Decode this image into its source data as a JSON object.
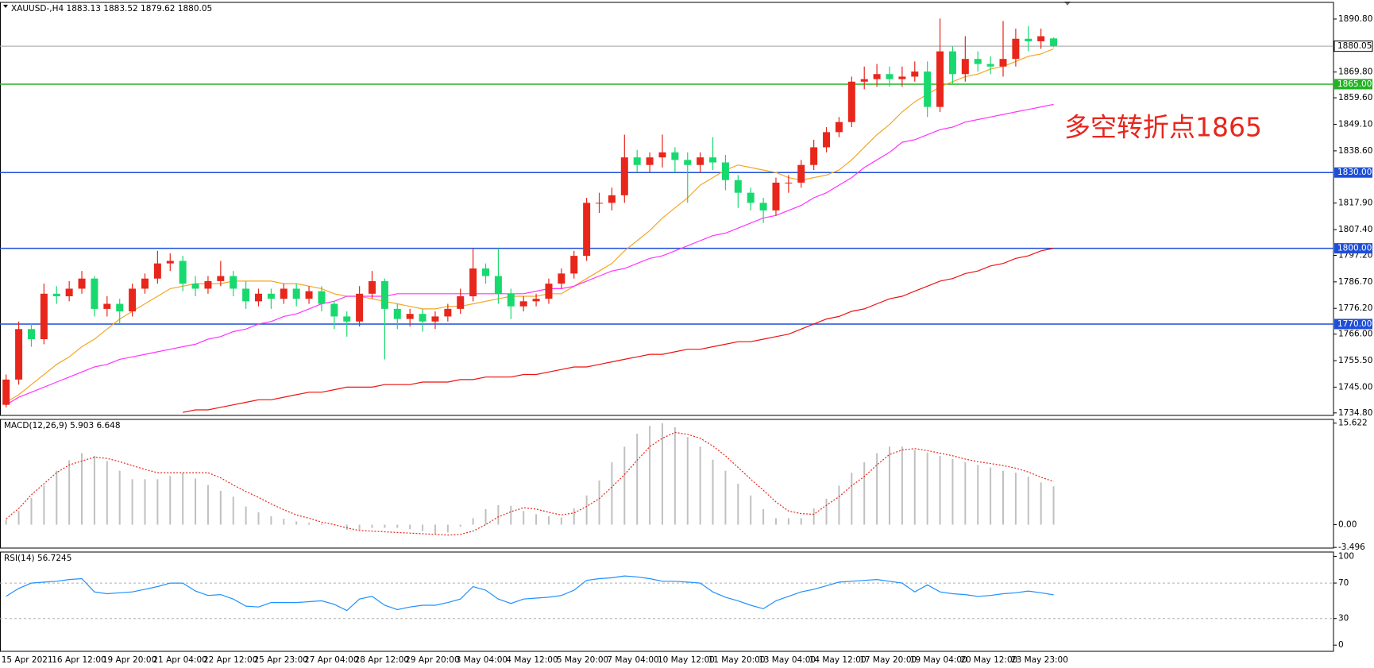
{
  "chart_data": [
    {
      "type": "candlestick",
      "title": "XAUUSD-,H4  1883.13 1883.52 1879.62 1880.05",
      "categories": [
        "15 Apr 2021",
        null,
        null,
        null,
        "16 Apr 12:00",
        null,
        null,
        null,
        "19 Apr 20:00",
        null,
        null,
        null,
        "21 Apr 04:00",
        null,
        null,
        null,
        "22 Apr 12:00",
        null,
        null,
        null,
        "25 Apr 23:00",
        null,
        null,
        null,
        "27 Apr 04:00",
        null,
        null,
        null,
        "28 Apr 12:00",
        null,
        null,
        null,
        "29 Apr 20:00",
        null,
        null,
        null,
        "3 May 04:00",
        null,
        null,
        null,
        "4 May 12:00",
        null,
        null,
        null,
        "5 May 20:00",
        null,
        null,
        null,
        "7 May 04:00",
        null,
        null,
        null,
        "10 May 12:00",
        null,
        null,
        null,
        "11 May 20:00",
        null,
        null,
        null,
        "13 May 04:00",
        null,
        null,
        null,
        "14 May 12:00",
        null,
        null,
        null,
        "17 May 20:00",
        null,
        null,
        null,
        "19 May 04:00",
        null,
        null,
        null,
        "20 May 12:00",
        null,
        null,
        null,
        "23 May 23:00",
        null,
        null,
        null
      ],
      "open": [
        1738,
        1748,
        1768,
        1764,
        1782,
        1781,
        1784,
        1788,
        1776,
        1778,
        1775,
        1784,
        1788,
        1794,
        1795,
        1786,
        1784,
        1787,
        1789,
        1784,
        1779,
        1782,
        1780,
        1784,
        1780,
        1783,
        1778,
        1773,
        1771,
        1782,
        1787,
        1776,
        1772,
        1774,
        1771,
        1773,
        1776,
        1781,
        1792,
        1789,
        1782,
        1777,
        1779,
        1780,
        1786,
        1790,
        1797,
        1818,
        1818,
        1821,
        1836,
        1833,
        1836,
        1838,
        1835,
        1833,
        1836,
        1834,
        1827,
        1822,
        1818,
        1815,
        1826,
        1826,
        1833,
        1840,
        1846,
        1850,
        1866,
        1867,
        1869,
        1867,
        1868,
        1870,
        1856,
        1878,
        1869,
        1875,
        1873,
        1872,
        1875,
        1883,
        1882,
        1883.13
      ],
      "high": [
        1750,
        1771,
        1770,
        1786,
        1785,
        1787,
        1791,
        1789,
        1781,
        1780,
        1786,
        1790,
        1799,
        1798,
        1797,
        1789,
        1789,
        1795,
        1791,
        1787,
        1784,
        1784,
        1786,
        1786,
        1785,
        1785,
        1779,
        1775,
        1785,
        1791,
        1788,
        1778,
        1776,
        1776,
        1775,
        1778,
        1784,
        1800,
        1794,
        1800,
        1784,
        1781,
        1782,
        1788,
        1792,
        1799,
        1820,
        1822,
        1824,
        1845,
        1839,
        1838,
        1845,
        1840,
        1838,
        1838,
        1844,
        1837,
        1829,
        1824,
        1820,
        1828,
        1829,
        1835,
        1843,
        1848,
        1852,
        1868,
        1872,
        1873,
        1872,
        1872,
        1874,
        1874,
        1891,
        1880,
        1884,
        1878,
        1876,
        1890,
        1887,
        1888,
        1887,
        1883.52
      ],
      "low": [
        1737,
        1746,
        1761,
        1762,
        1778,
        1779,
        1782,
        1773,
        1773,
        1770,
        1773,
        1782,
        1786,
        1791,
        1783,
        1781,
        1782,
        1785,
        1781,
        1776,
        1777,
        1776,
        1778,
        1777,
        1778,
        1775,
        1768,
        1765,
        1769,
        1780,
        1756,
        1768,
        1769,
        1767,
        1768,
        1771,
        1774,
        1779,
        1786,
        1778,
        1772,
        1775,
        1777,
        1778,
        1784,
        1788,
        1795,
        1814,
        1815,
        1818,
        1830,
        1830,
        1832,
        1830,
        1818,
        1830,
        1831,
        1823,
        1816,
        1815,
        1810,
        1813,
        1822,
        1824,
        1831,
        1838,
        1844,
        1848,
        1863,
        1864,
        1864,
        1864,
        1866,
        1852,
        1854,
        1865,
        1866,
        1870,
        1869,
        1868,
        1872,
        1878,
        1879,
        1879.62
      ],
      "close": [
        1748,
        1768,
        1764,
        1782,
        1781,
        1784,
        1788,
        1776,
        1778,
        1775,
        1784,
        1788,
        1794,
        1795,
        1786,
        1784,
        1787,
        1789,
        1784,
        1779,
        1782,
        1780,
        1784,
        1780,
        1783,
        1778,
        1773,
        1771,
        1782,
        1787,
        1776,
        1772,
        1774,
        1771,
        1773,
        1776,
        1781,
        1792,
        1789,
        1782,
        1777,
        1779,
        1780,
        1786,
        1790,
        1797,
        1818,
        1818,
        1821,
        1836,
        1833,
        1836,
        1838,
        1835,
        1833,
        1836,
        1834,
        1827,
        1822,
        1818,
        1815,
        1826,
        1826,
        1833,
        1840,
        1846,
        1850,
        1866,
        1867,
        1869,
        1867,
        1868,
        1870,
        1856,
        1878,
        1869,
        1875,
        1873,
        1872,
        1875,
        1883,
        1882,
        1884,
        1880.05
      ],
      "up_color": "#e8261b",
      "down_color": "#18d96e",
      "series": [
        {
          "color": "#f5a623",
          "values": [
            1739,
            1742,
            1746,
            1750,
            1754,
            1757,
            1761,
            1764,
            1768,
            1772,
            1775,
            1778,
            1781,
            1784,
            1785,
            1786,
            1786,
            1786,
            1787,
            1787,
            1787,
            1787,
            1786,
            1786,
            1785,
            1784,
            1782,
            1781,
            1781,
            1780,
            1779,
            1778,
            1777,
            1776,
            1776,
            1777,
            1777,
            1778,
            1779,
            1780,
            1781,
            1781,
            1781,
            1782,
            1782,
            1785,
            1788,
            1791,
            1794,
            1799,
            1803,
            1807,
            1812,
            1816,
            1820,
            1825,
            1828,
            1831,
            1833,
            1832,
            1831,
            1830,
            1828,
            1827,
            1828,
            1829,
            1831,
            1835,
            1840,
            1845,
            1849,
            1854,
            1858,
            1861,
            1864,
            1866,
            1868,
            1869,
            1871,
            1872,
            1874,
            1876,
            1877,
            1879
          ]
        },
        {
          "color": "#ff33ff",
          "values": [
            1738,
            1741,
            1743,
            1745,
            1747,
            1749,
            1751,
            1753,
            1754,
            1756,
            1757,
            1758,
            1759,
            1760,
            1761,
            1762,
            1764,
            1765,
            1767,
            1768,
            1770,
            1771,
            1773,
            1774,
            1776,
            1778,
            1779,
            1781,
            1781,
            1781,
            1781,
            1782,
            1782,
            1782,
            1782,
            1782,
            1782,
            1782,
            1782,
            1782,
            1782,
            1782,
            1783,
            1784,
            1784,
            1785,
            1787,
            1789,
            1791,
            1792,
            1794,
            1796,
            1797,
            1799,
            1801,
            1803,
            1805,
            1806,
            1808,
            1810,
            1812,
            1813,
            1815,
            1817,
            1820,
            1822,
            1825,
            1828,
            1832,
            1835,
            1838,
            1842,
            1843,
            1845,
            1847,
            1848,
            1850,
            1851,
            1852,
            1853,
            1854,
            1855,
            1856,
            1857
          ]
        },
        {
          "color": "#ee1111",
          "values": [
            null,
            null,
            null,
            null,
            null,
            null,
            null,
            null,
            null,
            null,
            null,
            null,
            null,
            null,
            1735,
            1736,
            1736,
            1737,
            1738,
            1739,
            1740,
            1740,
            1741,
            1742,
            1743,
            1743,
            1744,
            1745,
            1745,
            1745,
            1746,
            1746,
            1746,
            1747,
            1747,
            1747,
            1748,
            1748,
            1749,
            1749,
            1749,
            1750,
            1750,
            1751,
            1752,
            1753,
            1753,
            1754,
            1755,
            1756,
            1757,
            1758,
            1758,
            1759,
            1760,
            1760,
            1761,
            1762,
            1763,
            1763,
            1764,
            1765,
            1766,
            1768,
            1770,
            1772,
            1773,
            1775,
            1776,
            1778,
            1780,
            1781,
            1783,
            1785,
            1787,
            1788,
            1790,
            1791,
            1793,
            1794,
            1796,
            1797,
            1799,
            1800
          ]
        }
      ],
      "ylim": [
        1733.8,
        1897.4
      ],
      "yticks": [
        {
          "value": 1890.8,
          "label": "1890.80"
        },
        {
          "value": 1869.8,
          "label": "1869.80"
        },
        {
          "value": 1859.6,
          "label": "1859.60"
        },
        {
          "value": 1849.1,
          "label": "1849.10"
        },
        {
          "value": 1838.6,
          "label": "1838.60"
        },
        {
          "value": 1817.9,
          "label": "1817.90"
        },
        {
          "value": 1807.4,
          "label": "1807.40"
        },
        {
          "value": 1797.2,
          "label": "1797.20"
        },
        {
          "value": 1786.7,
          "label": "1786.70"
        },
        {
          "value": 1776.2,
          "label": "1776.20"
        },
        {
          "value": 1766,
          "label": "1766.00"
        },
        {
          "value": 1755.5,
          "label": "1755.50"
        },
        {
          "value": 1745,
          "label": "1745.00"
        },
        {
          "value": 1734.8,
          "label": "1734.80"
        }
      ],
      "levels": [
        {
          "value": 1865,
          "label": "1865.00",
          "color": "#22b422"
        },
        {
          "value": 1830,
          "label": "1830.00",
          "color": "#1f4fd8"
        },
        {
          "value": 1800,
          "label": "1800.00",
          "color": "#1f4fd8"
        },
        {
          "value": 1770,
          "label": "1770.00",
          "color": "#1f4fd8"
        }
      ],
      "current_price": {
        "value": 1880.05,
        "label": "1880.05",
        "color": "#a0a0a0"
      },
      "annotation": "多空转折点1865",
      "annotation_color": "#e8261b"
    },
    {
      "type": "combo",
      "title": "MACD(12,26,9) 5.903 6.648",
      "series": [
        {
          "type": "bar",
          "color": "#c0c0c0",
          "values": [
            0.8,
            2.1,
            4.1,
            6,
            8.3,
            9.9,
            11,
            10.6,
            9.8,
            8.3,
            7,
            7,
            7,
            7.5,
            8,
            7.1,
            6.1,
            5.2,
            4.3,
            2.8,
            1.9,
            1.3,
            0.9,
            0.5,
            0.3,
            0.2,
            -0.1,
            -0.8,
            -0.8,
            -0.5,
            -0.5,
            -0.5,
            -0.7,
            -1,
            -1.4,
            -1.2,
            -0.3,
            1,
            2.4,
            3,
            2.9,
            2.1,
            1.6,
            1.3,
            1.1,
            2.5,
            4.5,
            6.8,
            9.6,
            12,
            14,
            15.2,
            15.6,
            15,
            13.5,
            12,
            10,
            8.3,
            6.3,
            4.5,
            2.4,
            1,
            1,
            1,
            2.5,
            4,
            6,
            8,
            9.6,
            11,
            12,
            12,
            11.5,
            11.1,
            10.6,
            10.1,
            9.6,
            9.2,
            8.8,
            8.3,
            8,
            7.4,
            6.5,
            5.903
          ]
        },
        {
          "type": "line",
          "style": "dotted",
          "color": "#e8261b",
          "values": [
            0.9,
            2.5,
            4.6,
            6.3,
            8,
            9.2,
            9.8,
            10.4,
            10.2,
            9.7,
            9.1,
            8.5,
            8,
            8,
            8,
            8,
            8,
            7.2,
            6.1,
            5.1,
            4.2,
            3.2,
            2.3,
            1.5,
            1,
            0.4,
            0,
            -0.5,
            -0.9,
            -1,
            -1.1,
            -1.2,
            -1.3,
            -1.4,
            -1.5,
            -1.6,
            -1.5,
            -1,
            0,
            1.2,
            2,
            2.6,
            2.4,
            1.9,
            1.5,
            1.8,
            2.8,
            4,
            5.8,
            7.7,
            9.9,
            12,
            13.3,
            14.2,
            13.9,
            13.3,
            12.1,
            10.6,
            8.8,
            7,
            5.3,
            3.5,
            2.1,
            1.7,
            1.6,
            3,
            4.3,
            6,
            7.4,
            9.2,
            10.8,
            11.5,
            11.7,
            11.4,
            11,
            10.6,
            10.1,
            9.7,
            9.4,
            9.1,
            8.7,
            8.1,
            7.3,
            6.648
          ]
        }
      ],
      "ylim": [
        -3.6,
        16.2
      ],
      "yticks": [
        15.622,
        {
          "value": 0,
          "label": "0.00"
        },
        -3.496
      ]
    },
    {
      "type": "line",
      "title": "RSI(14) 56.7245",
      "series": [
        {
          "color": "#1e90ff",
          "values": [
            55,
            64,
            70,
            71,
            72,
            74,
            75,
            60,
            58,
            59,
            60,
            63,
            66,
            70,
            70,
            61,
            56,
            57,
            52,
            44,
            43,
            48,
            48,
            48,
            49,
            50,
            46,
            39,
            52,
            55,
            45,
            40,
            43,
            45,
            45,
            48,
            52,
            66,
            62,
            52,
            47,
            52,
            53,
            54,
            56,
            62,
            73,
            75,
            76,
            78,
            77,
            75,
            72,
            72,
            71,
            70,
            60,
            54,
            50,
            45,
            41,
            50,
            55,
            60,
            63,
            67,
            71,
            72,
            73,
            74,
            72,
            70,
            60,
            68,
            60,
            58,
            57,
            55,
            56,
            58,
            59,
            61,
            59,
            56.7245
          ]
        }
      ],
      "ylim": [
        -7,
        105
      ],
      "yticks": [
        100,
        70,
        30,
        0
      ],
      "levels": [
        70,
        30
      ]
    }
  ]
}
